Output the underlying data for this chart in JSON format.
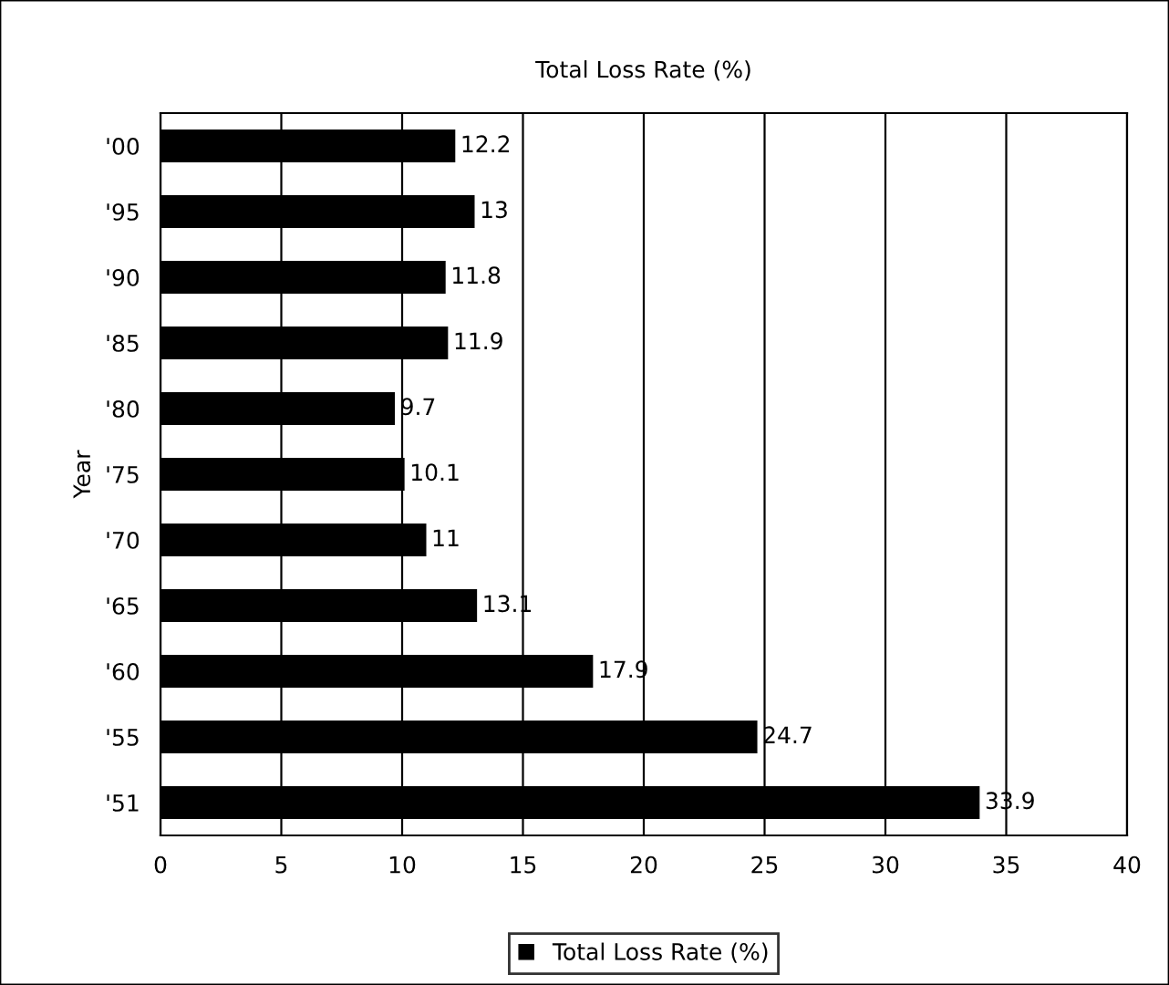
{
  "chart_data": {
    "type": "bar",
    "orientation": "horizontal",
    "title": "Total Loss Rate (%)",
    "ylabel": "Year",
    "categories": [
      "'00",
      "'95",
      "'90",
      "'85",
      "'80",
      "'75",
      "'70",
      "'65",
      "'60",
      "'55",
      "'51"
    ],
    "series": [
      {
        "name": "Total Loss Rate (%)",
        "color": "#000000",
        "values": [
          12.2,
          13,
          11.8,
          11.9,
          9.7,
          10.1,
          11,
          13.1,
          17.9,
          24.7,
          33.9
        ]
      }
    ],
    "xlim": [
      0,
      40
    ],
    "xticks": [
      0,
      5,
      10,
      15,
      20,
      25,
      30,
      35,
      40
    ],
    "grid": "x",
    "legend": "bottom",
    "data_labels": true
  }
}
